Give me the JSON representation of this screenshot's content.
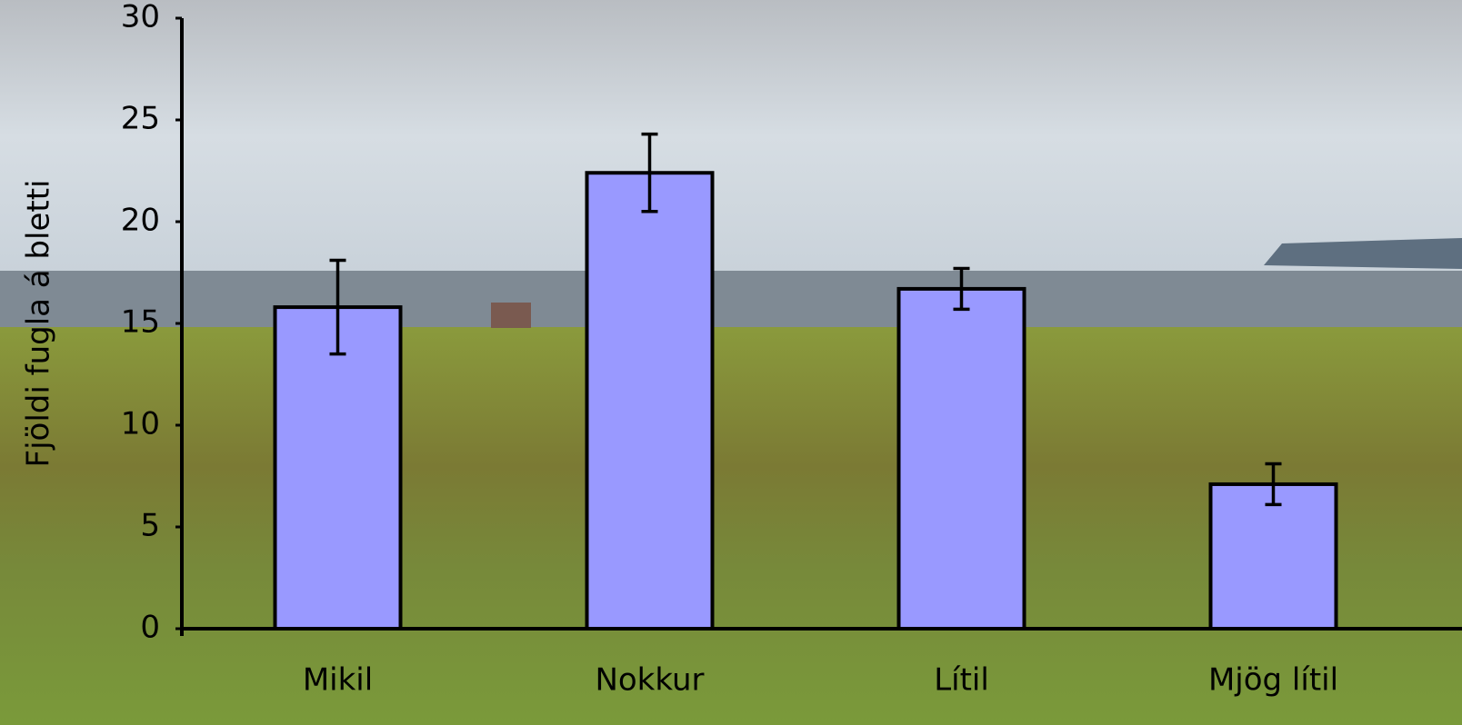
{
  "chart_data": {
    "type": "bar",
    "y_label": "Fjöldi fugla á bletti",
    "categories": [
      "Mikil",
      "Nokkur",
      "Lítil",
      "Mjög lítil"
    ],
    "values": [
      15.8,
      22.4,
      16.7,
      7.1
    ],
    "errors": [
      2.3,
      1.9,
      1.0,
      1.0
    ],
    "color": "#9999ff",
    "ylim": [
      0,
      30
    ],
    "yticks": [
      0,
      5,
      10,
      15,
      20,
      25,
      30
    ]
  }
}
